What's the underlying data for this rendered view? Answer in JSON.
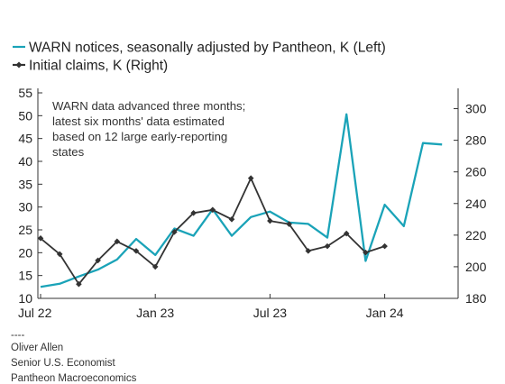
{
  "chart_data": {
    "type": "line",
    "title": "",
    "legend": [
      {
        "name": "WARN notices, seasonally adjusted by Pantheon, K (Left)",
        "color": "#1aa3b8",
        "marker": "none"
      },
      {
        "name": "Initial claims, K (Right)",
        "color": "#333333",
        "marker": "diamond"
      }
    ],
    "annotation": "WARN data advanced three months; latest six months' data estimated based on 12 large early-reporting states",
    "x_ticks": [
      "Jul 22",
      "Jan 23",
      "Jul 23",
      "Jan 24"
    ],
    "left_axis": {
      "ticks": [
        10,
        15,
        20,
        25,
        30,
        35,
        40,
        45,
        50,
        55
      ],
      "ylim": [
        10,
        55
      ]
    },
    "right_axis": {
      "ticks": [
        180,
        200,
        220,
        240,
        260,
        280,
        300
      ],
      "ylim": [
        180,
        310
      ]
    },
    "series": [
      {
        "name": "WARN notices, seasonally adjusted by Pantheon, K (Left)",
        "axis": "left",
        "color": "#1aa3b8",
        "x": [
          "2022-07",
          "2022-08",
          "2022-09",
          "2022-10",
          "2022-11",
          "2022-12",
          "2023-01",
          "2023-02",
          "2023-03",
          "2023-04",
          "2023-05",
          "2023-06",
          "2023-07",
          "2023-08",
          "2023-09",
          "2023-10",
          "2023-11",
          "2023-12",
          "2024-01",
          "2024-02",
          "2024-03",
          "2024-04"
        ],
        "values": [
          12.5,
          13.2,
          14.8,
          16.3,
          18.5,
          23.0,
          19.5,
          25.3,
          23.7,
          29.5,
          23.7,
          27.8,
          29.0,
          26.6,
          26.3,
          23.3,
          50.3,
          18.2,
          30.5,
          25.8,
          44.0,
          43.7
        ]
      },
      {
        "name": "Initial claims, K (Right)",
        "axis": "right",
        "color": "#333333",
        "x": [
          "2022-07",
          "2022-08",
          "2022-09",
          "2022-10",
          "2022-11",
          "2022-12",
          "2023-01",
          "2023-02",
          "2023-03",
          "2023-04",
          "2023-05",
          "2023-06",
          "2023-07",
          "2023-08",
          "2023-09",
          "2023-10",
          "2023-11",
          "2023-12",
          "2024-01"
        ],
        "values": [
          218,
          208,
          189,
          204,
          216,
          210,
          200,
          222,
          234,
          236,
          230,
          256,
          229,
          227,
          210,
          213,
          221,
          209,
          213
        ]
      }
    ]
  },
  "credits": {
    "separator": "----",
    "author": "Oliver Allen",
    "role": "Senior U.S. Economist",
    "org": "Pantheon Macroeconomics"
  }
}
